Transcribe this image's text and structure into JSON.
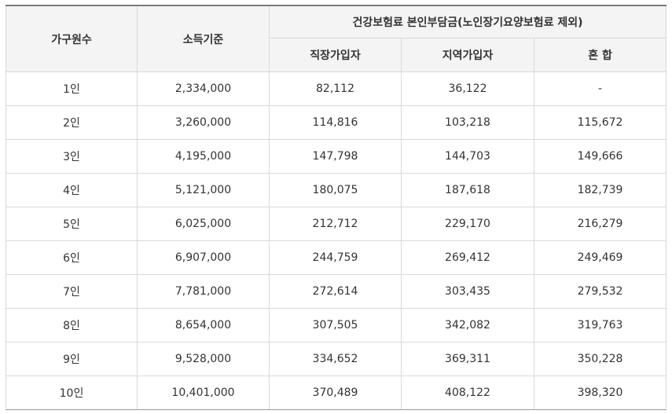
{
  "table": {
    "headers": {
      "household": "가구원수",
      "income": "소득기준",
      "premium_group": "건강보험료 본인부담금(노인장기요양보험료 제외)",
      "employee": "직장가입자",
      "regional": "지역가입자",
      "mixed": "혼 합"
    },
    "rows": [
      {
        "household": "1인",
        "income": "2,334,000",
        "employee": "82,112",
        "regional": "36,122",
        "mixed": "-"
      },
      {
        "household": "2인",
        "income": "3,260,000",
        "employee": "114,816",
        "regional": "103,218",
        "mixed": "115,672"
      },
      {
        "household": "3인",
        "income": "4,195,000",
        "employee": "147,798",
        "regional": "144,703",
        "mixed": "149,666"
      },
      {
        "household": "4인",
        "income": "5,121,000",
        "employee": "180,075",
        "regional": "187,618",
        "mixed": "182,739"
      },
      {
        "household": "5인",
        "income": "6,025,000",
        "employee": "212,712",
        "regional": "229,170",
        "mixed": "216,279"
      },
      {
        "household": "6인",
        "income": "6,907,000",
        "employee": "244,759",
        "regional": "269,412",
        "mixed": "249,469"
      },
      {
        "household": "7인",
        "income": "7,781,000",
        "employee": "272,614",
        "regional": "303,435",
        "mixed": "279,532"
      },
      {
        "household": "8인",
        "income": "8,654,000",
        "employee": "307,505",
        "regional": "342,082",
        "mixed": "319,763"
      },
      {
        "household": "9인",
        "income": "9,528,000",
        "employee": "334,652",
        "regional": "369,311",
        "mixed": "350,228"
      },
      {
        "household": "10인",
        "income": "10,401,000",
        "employee": "370,489",
        "regional": "408,122",
        "mixed": "398,320"
      }
    ]
  }
}
